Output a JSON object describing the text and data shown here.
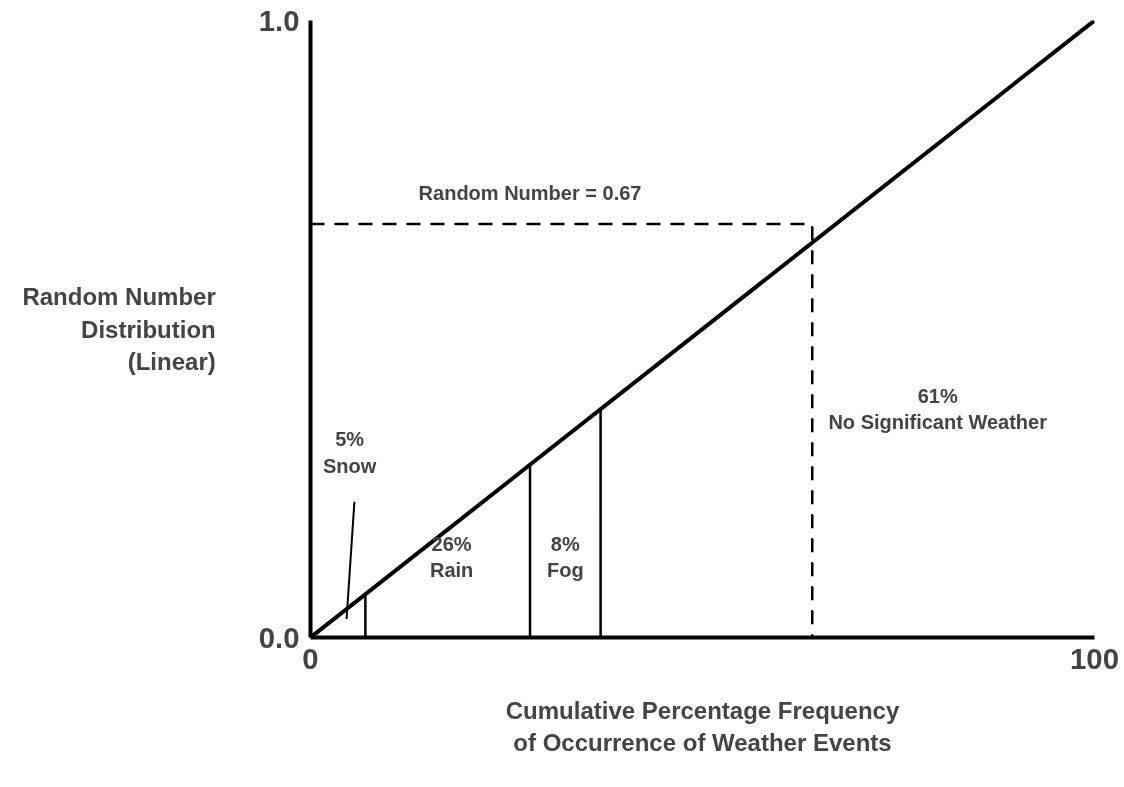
{
  "chart_data": {
    "type": "line",
    "xlabel": "Cumulative Percentage Frequency\nof Occurrence of Weather Events",
    "ylabel": "Random Number\nDistribution\n(Linear)",
    "xlim": [
      0,
      100
    ],
    "ylim": [
      0,
      1
    ],
    "xticks": [
      0,
      100
    ],
    "yticks": [
      {
        "value": 0,
        "label": "0.0"
      },
      {
        "value": 1,
        "label": "1.0"
      }
    ],
    "marker": "none",
    "series": [
      {
        "color": "#000000",
        "x": [
          0,
          100
        ],
        "values": [
          0,
          1
        ]
      },
      {
        "color": "#000000",
        "x": [
          7,
          7
        ],
        "values": [
          0,
          0.07
        ]
      },
      {
        "color": "#000000",
        "x": [
          28,
          28
        ],
        "values": [
          0,
          0.28
        ]
      },
      {
        "color": "#000000",
        "x": [
          37,
          37
        ],
        "values": [
          0,
          0.37
        ]
      },
      {
        "color": "#000000",
        "x": [
          0,
          64,
          64
        ],
        "values": [
          0.67,
          0.67,
          0
        ],
        "line_style": "dashed"
      }
    ],
    "annotations": [
      "Random Number = 0.67",
      "5%\nSnow",
      "26%\nRain",
      "8%\nFog",
      "61%\nNo Significant Weather"
    ]
  }
}
